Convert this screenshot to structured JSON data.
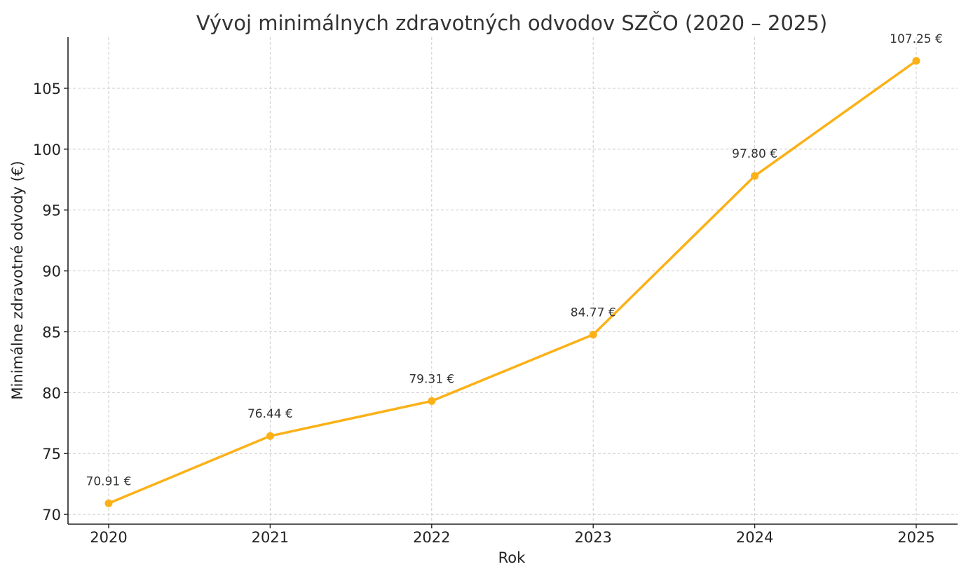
{
  "chart_data": {
    "type": "line",
    "title": "Vývoj minimálnych zdravotných odvodov SZČO (2020 – 2025)",
    "xlabel": "Rok",
    "ylabel": "Minimálne zdravotné odvody (€)",
    "x": [
      "2020",
      "2021",
      "2022",
      "2023",
      "2024",
      "2025"
    ],
    "series": [
      {
        "values": [
          70.91,
          76.44,
          79.31,
          84.77,
          97.8,
          107.25
        ],
        "data_labels": [
          "70.91 €",
          "76.44 €",
          "79.31 €",
          "84.77 €",
          "97.80 €",
          "107.25 €"
        ],
        "color": "#FBB117"
      }
    ],
    "yticks": [
      "70",
      "75",
      "80",
      "85",
      "90",
      "95",
      "100",
      "105"
    ],
    "ylim": [
      69.2,
      109.2
    ],
    "grid": true,
    "legend": "none"
  }
}
